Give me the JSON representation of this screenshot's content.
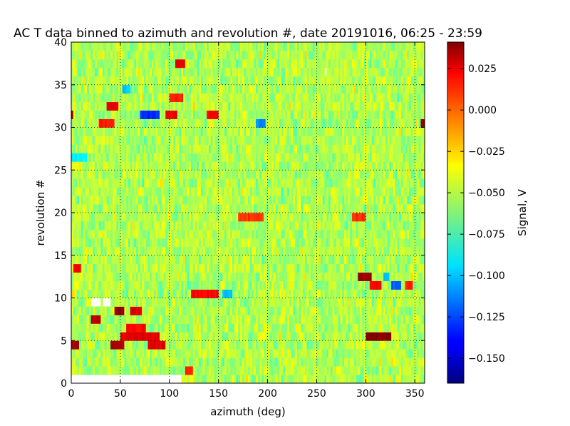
{
  "chart_data": {
    "type": "heatmap",
    "title": "AC T data binned to azimuth and revolution #, date 20191016, 06:25 - 23:59",
    "xlabel": "azimuth (deg)",
    "ylabel": "revolution #",
    "xlim": [
      0,
      360
    ],
    "ylim": [
      0,
      40
    ],
    "xticks": [
      0,
      50,
      100,
      150,
      200,
      250,
      300,
      350
    ],
    "yticks": [
      0,
      5,
      10,
      15,
      20,
      25,
      30,
      35,
      40
    ],
    "grid": true,
    "grid_style": "dotted",
    "colormap": "jet",
    "colorbar": {
      "label": "Signal, V",
      "min": -0.165,
      "max": 0.041,
      "ticks": [
        -0.15,
        -0.125,
        -0.1,
        -0.075,
        -0.05,
        -0.025,
        0.0,
        0.025
      ],
      "tick_labels": [
        "−0.150",
        "−0.125",
        "−0.100",
        "−0.075",
        "−0.050",
        "−0.025",
        "0.000",
        "0.025"
      ]
    },
    "grid_shape": {
      "azimuth_bins": 180,
      "revolution_bins": 40
    },
    "background_level": -0.052,
    "first_revolution": 1,
    "missing_cells": [
      {
        "revolution": 1,
        "azimuth_from": 0,
        "azimuth_to": 112
      },
      {
        "revolution": 10,
        "azimuth_from": 20,
        "azimuth_to": 30
      },
      {
        "revolution": 10,
        "azimuth_from": 32,
        "azimuth_to": 40
      },
      {
        "revolution": 37,
        "azimuth_from": 258,
        "azimuth_to": 260
      }
    ],
    "features": [
      {
        "revolution": 32,
        "azimuth_from": 0,
        "azimuth_to": 2,
        "value": 0.035
      },
      {
        "revolution": 32,
        "azimuth_from": 70,
        "azimuth_to": 90,
        "value": -0.13
      },
      {
        "revolution": 32,
        "azimuth_from": 96,
        "azimuth_to": 108,
        "value": 0.02
      },
      {
        "revolution": 32,
        "azimuth_from": 138,
        "azimuth_to": 150,
        "value": 0.015
      },
      {
        "revolution": 31,
        "azimuth_from": 28,
        "azimuth_to": 44,
        "value": 0.01
      },
      {
        "revolution": 31,
        "azimuth_from": 188,
        "azimuth_to": 198,
        "value": -0.11
      },
      {
        "revolution": 31,
        "azimuth_from": 356,
        "azimuth_to": 360,
        "value": 0.035
      },
      {
        "revolution": 33,
        "azimuth_from": 36,
        "azimuth_to": 48,
        "value": 0.02
      },
      {
        "revolution": 34,
        "azimuth_from": 100,
        "azimuth_to": 114,
        "value": 0.01
      },
      {
        "revolution": 35,
        "azimuth_from": 52,
        "azimuth_to": 60,
        "value": -0.1
      },
      {
        "revolution": 38,
        "azimuth_from": 106,
        "azimuth_to": 116,
        "value": 0.02
      },
      {
        "revolution": 11,
        "azimuth_from": 122,
        "azimuth_to": 150,
        "value": 0.015
      },
      {
        "revolution": 11,
        "azimuth_from": 154,
        "azimuth_to": 164,
        "value": -0.1
      },
      {
        "revolution": 9,
        "azimuth_from": 44,
        "azimuth_to": 54,
        "value": 0.035
      },
      {
        "revolution": 9,
        "azimuth_from": 60,
        "azimuth_to": 72,
        "value": 0.02
      },
      {
        "revolution": 8,
        "azimuth_from": 20,
        "azimuth_to": 30,
        "value": 0.03
      },
      {
        "revolution": 7,
        "azimuth_from": 56,
        "azimuth_to": 76,
        "value": 0.015
      },
      {
        "revolution": 6,
        "azimuth_from": 50,
        "azimuth_to": 90,
        "value": 0.02
      },
      {
        "revolution": 6,
        "azimuth_from": 300,
        "azimuth_to": 326,
        "value": 0.04
      },
      {
        "revolution": 5,
        "azimuth_from": 40,
        "azimuth_to": 54,
        "value": 0.03
      },
      {
        "revolution": 5,
        "azimuth_from": 0,
        "azimuth_to": 8,
        "value": 0.035
      },
      {
        "revolution": 5,
        "azimuth_from": 78,
        "azimuth_to": 96,
        "value": 0.02
      },
      {
        "revolution": 13,
        "azimuth_from": 292,
        "azimuth_to": 306,
        "value": 0.035
      },
      {
        "revolution": 13,
        "azimuth_from": 318,
        "azimuth_to": 324,
        "value": -0.1
      },
      {
        "revolution": 12,
        "azimuth_from": 304,
        "azimuth_to": 316,
        "value": 0.015
      },
      {
        "revolution": 12,
        "azimuth_from": 326,
        "azimuth_to": 336,
        "value": -0.12
      },
      {
        "revolution": 12,
        "azimuth_from": 340,
        "azimuth_to": 348,
        "value": 0.01
      },
      {
        "revolution": 14,
        "azimuth_from": 2,
        "azimuth_to": 10,
        "value": 0.015
      },
      {
        "revolution": 20,
        "azimuth_from": 170,
        "azimuth_to": 196,
        "value": 0.005
      },
      {
        "revolution": 20,
        "azimuth_from": 286,
        "azimuth_to": 300,
        "value": 0.005
      },
      {
        "revolution": 27,
        "azimuth_from": 0,
        "azimuth_to": 16,
        "value": -0.09
      },
      {
        "revolution": 2,
        "azimuth_from": 116,
        "azimuth_to": 124,
        "value": 0.01
      }
    ]
  }
}
